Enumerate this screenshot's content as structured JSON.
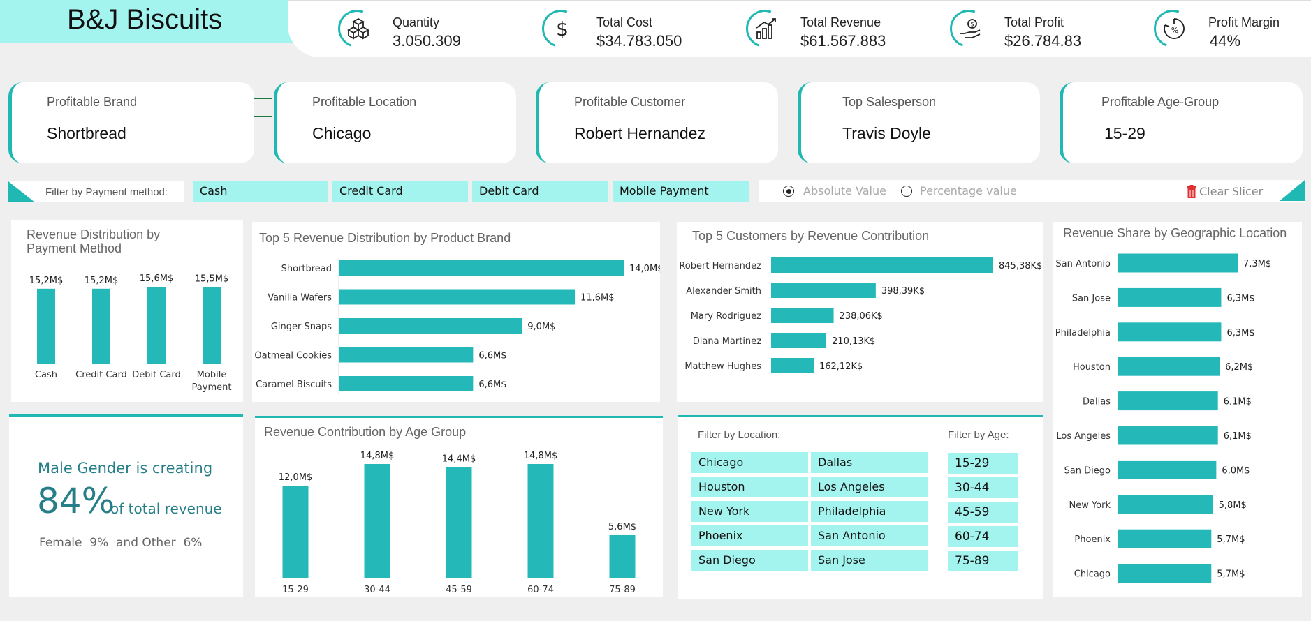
{
  "app": {
    "title": "B&J Biscuits",
    "accent": "#24b8b8",
    "pill_color": "#a3f3ee"
  },
  "kpis": [
    {
      "label": "Quantity",
      "value": "3.050.309",
      "icon": "cubes-icon"
    },
    {
      "label": "Total Cost",
      "value": "$34.783.050",
      "icon": "dollar-icon"
    },
    {
      "label": "Total Revenue",
      "value": "$61.567.883",
      "icon": "growth-chart-icon"
    },
    {
      "label": "Total Profit",
      "value": "$26.784.83",
      "icon": "hand-coin-icon"
    },
    {
      "label": "Profit Margin",
      "value": "44%",
      "icon": "percent-gauge-icon"
    }
  ],
  "cards": [
    {
      "label": "Profitable Brand",
      "value": "Shortbread"
    },
    {
      "label": "Profitable Location",
      "value": "Chicago"
    },
    {
      "label": "Profitable Customer",
      "value": "Robert Hernandez"
    },
    {
      "label": "Top Salesperson",
      "value": "Travis Doyle"
    },
    {
      "label": "Profitable Age-Group",
      "value": "15-29"
    }
  ],
  "payment_filter": {
    "label": "Filter by Payment method:",
    "options": [
      "Cash",
      "Credit Card",
      "Debit Card",
      "Mobile Payment"
    ]
  },
  "value_mode": {
    "options": [
      "Absolute Value",
      "Percentage value"
    ],
    "selected": "Absolute Value"
  },
  "clear_slicer": "Clear Slicer",
  "gender": {
    "line1": "Male Gender is creating",
    "big": "84%",
    "suffix": "of total revenue",
    "female": "Female  9%",
    "other": "and Other  6%"
  },
  "location_filter": {
    "label": "Filter by Location:",
    "options": [
      "Chicago",
      "Dallas",
      "Houston",
      "Los Angeles",
      "New York",
      "Philadelphia",
      "Phoenix",
      "San Antonio",
      "San Diego",
      "San Jose"
    ]
  },
  "age_filter": {
    "label": "Filter by Age:",
    "options": [
      "15-29",
      "30-44",
      "45-59",
      "60-74",
      "75-89"
    ]
  },
  "chart_data": [
    {
      "id": "payment",
      "type": "bar",
      "title": "Revenue Distribution by Payment Method",
      "categories": [
        "Cash",
        "Credit Card",
        "Debit Card",
        "Mobile Payment"
      ],
      "values": [
        15.2,
        15.2,
        15.6,
        15.5
      ],
      "labels": [
        "15,2M$",
        "15,2M$",
        "15,6M$",
        "15,5M$"
      ]
    },
    {
      "id": "brand",
      "type": "bar",
      "orientation": "horizontal",
      "title": "Top 5 Revenue Distribution by Product Brand",
      "categories": [
        "Shortbread",
        "Vanilla Wafers",
        "Ginger Snaps",
        "Oatmeal Cookies",
        "Caramel Biscuits"
      ],
      "values": [
        14.0,
        11.6,
        9.0,
        6.6,
        6.6
      ],
      "labels": [
        "14,0M$",
        "11,6M$",
        "9,0M$",
        "6,6M$",
        "6,6M$"
      ]
    },
    {
      "id": "customers",
      "type": "bar",
      "orientation": "horizontal",
      "title": "Top 5 Customers by Revenue Contribution",
      "categories": [
        "Robert Hernandez",
        "Alexander Smith",
        "Mary Rodriguez",
        "Diana Martinez",
        "Matthew Hughes"
      ],
      "values": [
        845.38,
        398.39,
        238.06,
        210.13,
        162.12
      ],
      "labels": [
        "845,38K$",
        "398,39K$",
        "238,06K$",
        "210,13K$",
        "162,12K$"
      ]
    },
    {
      "id": "location",
      "type": "bar",
      "orientation": "horizontal",
      "title": "Revenue Share by Geographic Location",
      "categories": [
        "San Antonio",
        "San Jose",
        "Philadelphia",
        "Houston",
        "Dallas",
        "Los Angeles",
        "San Diego",
        "New York",
        "Phoenix",
        "Chicago"
      ],
      "values": [
        7.3,
        6.3,
        6.3,
        6.2,
        6.1,
        6.1,
        6.0,
        5.8,
        5.7,
        5.7
      ],
      "labels": [
        "7,3M$",
        "6,3M$",
        "6,3M$",
        "6,2M$",
        "6,1M$",
        "6,1M$",
        "6,0M$",
        "5,8M$",
        "5,7M$",
        "5,7M$"
      ]
    },
    {
      "id": "age",
      "type": "bar",
      "title": "Revenue Contribution by Age Group",
      "categories": [
        "15-29",
        "30-44",
        "45-59",
        "60-74",
        "75-89"
      ],
      "values": [
        12.0,
        14.8,
        14.4,
        14.8,
        5.6
      ],
      "labels": [
        "12,0M$",
        "14,8M$",
        "14,4M$",
        "14,8M$",
        "5,6M$"
      ]
    }
  ]
}
